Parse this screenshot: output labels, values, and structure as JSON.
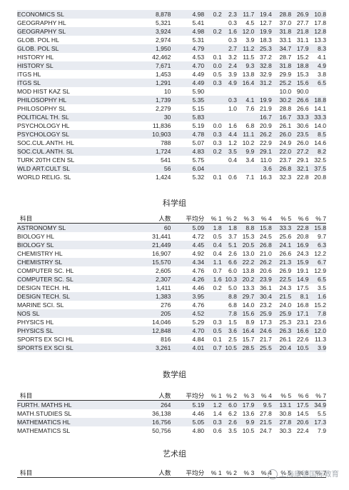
{
  "history_table": {
    "rows": [
      [
        "ECONOMICS SL",
        "8,878",
        "4.98",
        "0.2",
        "2.3",
        "11.7",
        "19.4",
        "28.8",
        "26.9",
        "10.8"
      ],
      [
        "GEOGRAPHY HL",
        "5,321",
        "5.41",
        "",
        "0.3",
        "4.5",
        "12.7",
        "37.0",
        "27.7",
        "17.8"
      ],
      [
        "GEOGRAPHY SL",
        "3,924",
        "4.98",
        "0.2",
        "1.6",
        "12.0",
        "19.9",
        "31.8",
        "21.8",
        "12.8"
      ],
      [
        "GLOB. POL HL",
        "2,974",
        "5.31",
        "",
        "0.3",
        "3.9",
        "18.3",
        "33.1",
        "31.1",
        "13.3"
      ],
      [
        "GLOB. POL SL",
        "1,950",
        "4.79",
        "",
        "2.7",
        "11.2",
        "25.3",
        "34.7",
        "17.9",
        "8.3"
      ],
      [
        "HISTORY HL",
        "42,462",
        "4.53",
        "0.1",
        "3.2",
        "11.5",
        "37.2",
        "28.7",
        "15.2",
        "4.1"
      ],
      [
        "HISTORY SL",
        "7,671",
        "4.70",
        "0.0",
        "2.4",
        "9.3",
        "32.8",
        "31.8",
        "18.8",
        "4.9"
      ],
      [
        "ITGS HL",
        "1,453",
        "4.49",
        "0.5",
        "3.9",
        "13.8",
        "32.9",
        "29.9",
        "15.3",
        "3.8"
      ],
      [
        "ITGS SL",
        "1,291",
        "4.49",
        "0.3",
        "4.9",
        "16.4",
        "31.2",
        "25.2",
        "15.6",
        "6.5"
      ],
      [
        "MOD HIST KAZ SL",
        "10",
        "5.90",
        "",
        "",
        "",
        "",
        "10.0",
        "90.0",
        ""
      ],
      [
        "PHILOSOPHY HL",
        "1,739",
        "5.35",
        "",
        "0.3",
        "4.1",
        "19.9",
        "30.2",
        "26.6",
        "18.8"
      ],
      [
        "PHILOSOPHY SL",
        "2,279",
        "5.15",
        "",
        "1.0",
        "7.6",
        "21.9",
        "28.8",
        "26.6",
        "14.1"
      ],
      [
        "POLITICAL TH. SL",
        "30",
        "5.83",
        "",
        "",
        "",
        "16.7",
        "16.7",
        "33.3",
        "33.3"
      ],
      [
        "PSYCHOLOGY HL",
        "11,836",
        "5.19",
        "0.0",
        "1.6",
        "6.8",
        "20.9",
        "26.1",
        "30.6",
        "14.0"
      ],
      [
        "PSYCHOLOGY SL",
        "10,903",
        "4.78",
        "0.3",
        "4.4",
        "11.1",
        "26.2",
        "26.0",
        "23.5",
        "8.5"
      ],
      [
        "SOC.CUL.ANTH. HL",
        "788",
        "5.07",
        "0.3",
        "1.2",
        "10.2",
        "22.9",
        "24.9",
        "26.0",
        "14.6"
      ],
      [
        "SOC.CUL.ANTH. SL",
        "1,724",
        "4.83",
        "0.2",
        "3.5",
        "9.9",
        "29.1",
        "22.0",
        "27.2",
        "8.2"
      ],
      [
        "TURK 20TH CEN SL",
        "541",
        "5.75",
        "",
        "0.4",
        "3.4",
        "11.0",
        "23.7",
        "29.1",
        "32.5"
      ],
      [
        "WLD ART.CULT SL",
        "56",
        "6.04",
        "",
        "",
        "",
        "3.6",
        "26.8",
        "32.1",
        "37.5"
      ],
      [
        "WORLD RELIG. SL",
        "1,424",
        "5.32",
        "0.1",
        "0.6",
        "7.1",
        "16.3",
        "32.3",
        "22.8",
        "20.8"
      ]
    ]
  },
  "science": {
    "title": "科学组",
    "headers": [
      "科目",
      "人数",
      "平均分",
      "% 1",
      "% 2",
      "% 3",
      "% 4",
      "% 5",
      "% 6",
      "% 7"
    ],
    "rows": [
      [
        "ASTRONOMY SL",
        "60",
        "5.09",
        "1.8",
        "1.8",
        "8.8",
        "15.8",
        "33.3",
        "22.8",
        "15.8"
      ],
      [
        "BIOLOGY HL",
        "31,441",
        "4.72",
        "0.5",
        "3.7",
        "15.3",
        "24.5",
        "25.6",
        "20.8",
        "9.7"
      ],
      [
        "BIOLOGY SL",
        "21,449",
        "4.45",
        "0.4",
        "5.1",
        "20.5",
        "26.8",
        "24.1",
        "16.9",
        "6.3"
      ],
      [
        "CHEMISTRY HL",
        "16,907",
        "4.92",
        "0.4",
        "2.6",
        "13.0",
        "21.0",
        "26.6",
        "24.3",
        "12.2"
      ],
      [
        "CHEMISTRY SL",
        "15,570",
        "4.34",
        "1.1",
        "6.6",
        "22.2",
        "26.2",
        "21.3",
        "15.9",
        "6.7"
      ],
      [
        "COMPUTER SC. HL",
        "2,605",
        "4.76",
        "0.7",
        "6.0",
        "13.8",
        "20.6",
        "26.9",
        "19.1",
        "12.9"
      ],
      [
        "COMPUTER SC. SL",
        "2,307",
        "4.26",
        "1.6",
        "10.3",
        "20.2",
        "23.9",
        "22.5",
        "14.9",
        "6.5"
      ],
      [
        "DESIGN TECH. HL",
        "1,411",
        "4.46",
        "0.2",
        "5.0",
        "13.3",
        "36.1",
        "24.3",
        "17.5",
        "3.5"
      ],
      [
        "DESIGN TECH. SL",
        "1,383",
        "3.95",
        "",
        "8.8",
        "29.7",
        "30.4",
        "21.5",
        "8.1",
        "1.6"
      ],
      [
        "MARINE SCI. SL",
        "276",
        "4.76",
        "",
        "6.8",
        "14.0",
        "23.2",
        "24.0",
        "16.8",
        "15.2"
      ],
      [
        "NOS SL",
        "205",
        "4.52",
        "",
        "7.8",
        "15.6",
        "25.9",
        "25.9",
        "17.1",
        "7.8"
      ],
      [
        "PHYSICS HL",
        "14,046",
        "5.29",
        "0.3",
        "1.5",
        "8.9",
        "17.3",
        "25.3",
        "23.1",
        "23.6"
      ],
      [
        "PHYSICS SL",
        "12,848",
        "4.70",
        "0.5",
        "3.6",
        "16.4",
        "24.6",
        "26.3",
        "16.6",
        "12.0"
      ],
      [
        "SPORTS EX SCI HL",
        "816",
        "4.84",
        "0.1",
        "2.5",
        "15.7",
        "21.7",
        "26.1",
        "22.6",
        "11.3"
      ],
      [
        "SPORTS EX SCI SL",
        "3,261",
        "4.01",
        "0.7",
        "10.5",
        "28.5",
        "25.5",
        "20.4",
        "10.5",
        "3.9"
      ]
    ]
  },
  "math": {
    "title": "数学组",
    "headers": [
      "科目",
      "人数",
      "平均分",
      "% 1",
      "% 2",
      "% 3",
      "% 4",
      "% 5",
      "% 6",
      "% 7"
    ],
    "rows": [
      [
        "FURTH. MATHS HL",
        "264",
        "5.19",
        "1.2",
        "6.0",
        "17.9",
        "9.5",
        "13.1",
        "17.5",
        "34.9"
      ],
      [
        "MATH.STUDIES SL",
        "36,138",
        "4.46",
        "1.4",
        "6.2",
        "13.6",
        "27.8",
        "30.8",
        "14.5",
        "5.5"
      ],
      [
        "MATHEMATICS HL",
        "16,756",
        "5.05",
        "0.3",
        "2.6",
        "9.9",
        "21.5",
        "27.8",
        "20.6",
        "17.3"
      ],
      [
        "MATHEMATICS SL",
        "50,756",
        "4.80",
        "0.6",
        "3.5",
        "10.5",
        "24.7",
        "30.3",
        "22.4",
        "7.9"
      ]
    ]
  },
  "arts": {
    "title": "艺术组",
    "headers": [
      "科目",
      "人数",
      "平均分",
      "% 1",
      "% 2",
      "% 3",
      "% 4",
      "% 5",
      "% 6",
      "% 7"
    ]
  },
  "watermark": {
    "text": "上海康德国际教育"
  }
}
